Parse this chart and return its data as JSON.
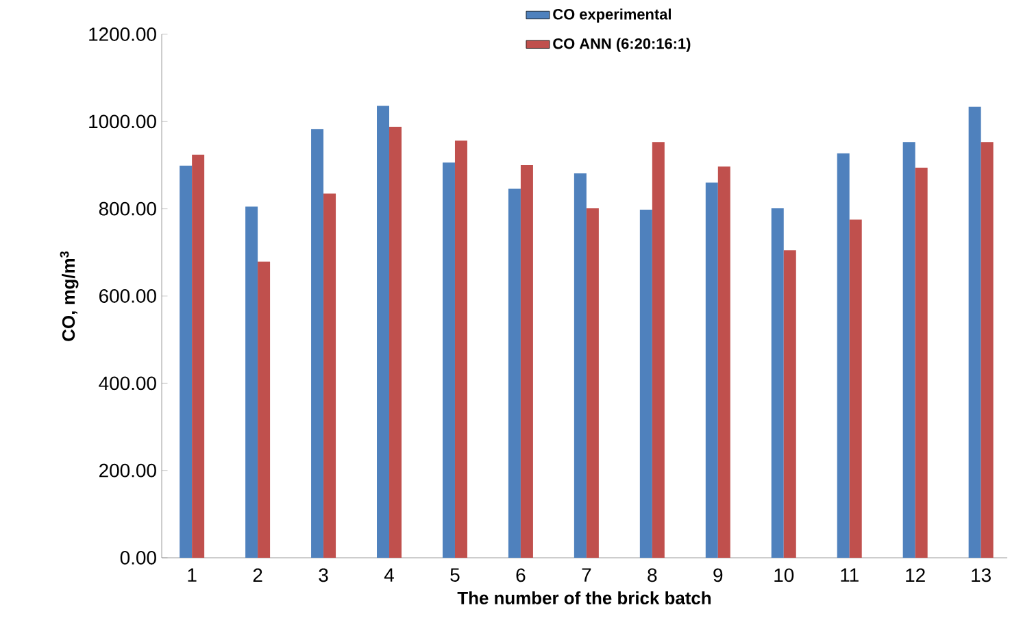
{
  "chart_data": {
    "type": "bar",
    "xlabel": "The number of the brick batch",
    "ylabel": "CO, mg/m$^{3}$",
    "categories": [
      "1",
      "2",
      "3",
      "4",
      "5",
      "6",
      "7",
      "8",
      "9",
      "10",
      "11",
      "12",
      "13"
    ],
    "series": [
      {
        "name": "CO experimental",
        "color": "#4f81bd",
        "values": [
          899,
          805,
          983,
          1036,
          906,
          846,
          881,
          798,
          860,
          801,
          927,
          953,
          1034
        ]
      },
      {
        "name": "CO ANN (6:20:16:1)",
        "color": "#c0504d",
        "values": [
          924,
          679,
          835,
          988,
          956,
          900,
          801,
          953,
          897,
          705,
          775,
          894,
          953
        ]
      }
    ],
    "ylim": [
      0,
      1200
    ],
    "yticks": [
      {
        "value": 0,
        "label": "0.00"
      },
      {
        "value": 200,
        "label": "200.00"
      },
      {
        "value": 400,
        "label": "400.00"
      },
      {
        "value": 600,
        "label": "600.00"
      },
      {
        "value": 800,
        "label": "800.00"
      },
      {
        "value": 1000,
        "label": "1000.00"
      },
      {
        "value": 1200,
        "label": "1200.00"
      }
    ],
    "legend": "top"
  }
}
